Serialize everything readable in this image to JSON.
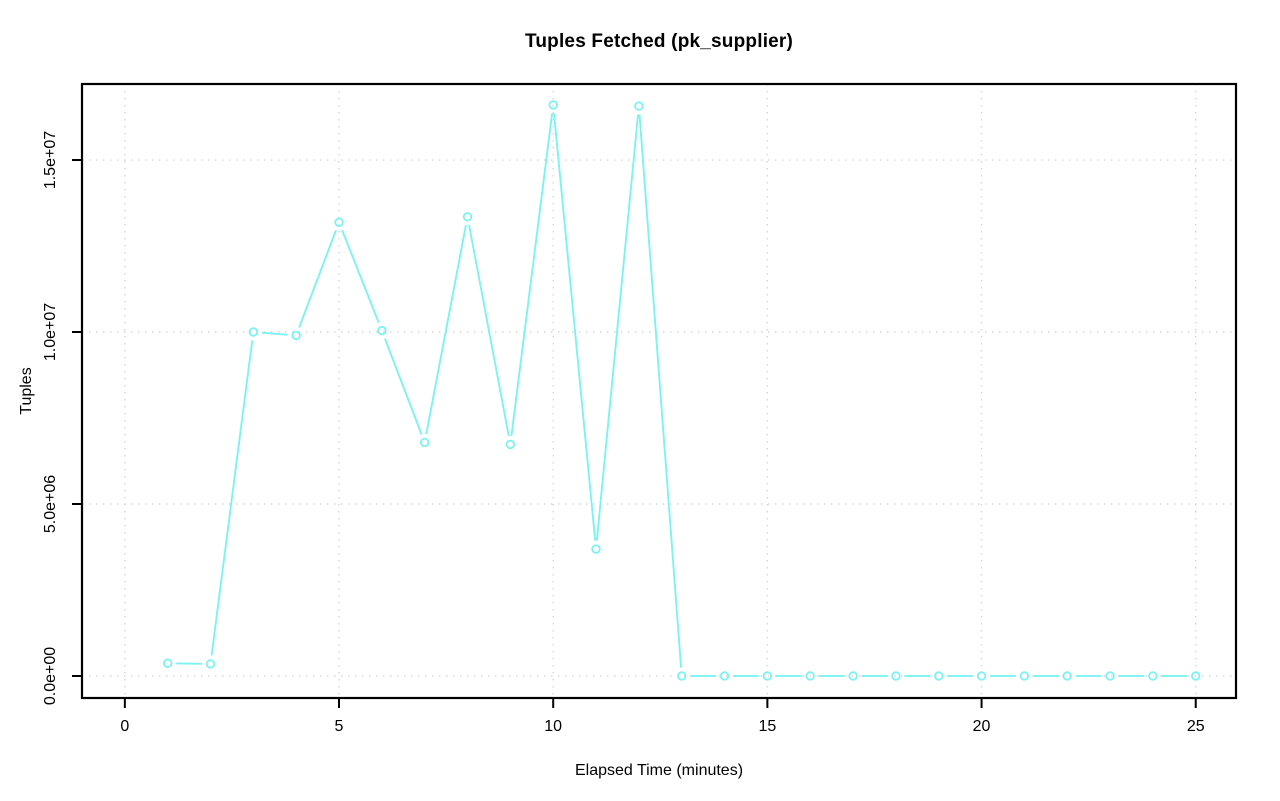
{
  "page": {
    "background": "#ffffff"
  },
  "chart_data": {
    "type": "line",
    "title": "Tuples Fetched (pk_supplier)",
    "xlabel": "Elapsed Time (minutes)",
    "ylabel": "Tuples",
    "x": [
      1,
      2,
      3,
      4,
      5,
      6,
      7,
      8,
      9,
      10,
      11,
      12,
      13,
      14,
      15,
      16,
      17,
      18,
      19,
      20,
      21,
      22,
      23,
      24,
      25
    ],
    "series": [
      {
        "name": "pk_supplier",
        "values": [
          370000,
          350000,
          10000000,
          9900000,
          13190000,
          10040000,
          6790000,
          13350000,
          6730000,
          16600000,
          3690000,
          16570000,
          0,
          0,
          0,
          0,
          0,
          0,
          0,
          0,
          0,
          0,
          0,
          0,
          0
        ]
      }
    ],
    "x_ticks": {
      "values": [
        0,
        5,
        10,
        15,
        20,
        25
      ],
      "labels": [
        "0",
        "5",
        "10",
        "15",
        "20",
        "25"
      ]
    },
    "y_ticks": {
      "values": [
        0,
        5000000,
        10000000,
        15000000
      ],
      "labels": [
        "0.0e+00",
        "5.0e+06",
        "1.0e+07",
        "1.5e+07"
      ]
    },
    "xlim": [
      -1.0,
      25.94
    ],
    "ylim": [
      -640000,
      17210000
    ],
    "grid": true,
    "grid_style": "dotted",
    "legend": null,
    "marker": "open-circle",
    "line_style": "segments-with-gaps",
    "colors": {
      "series": "#7DF2F2",
      "grid": "#d4d4d4",
      "axis": "#000000",
      "text": "#000000",
      "background": "#ffffff"
    }
  }
}
